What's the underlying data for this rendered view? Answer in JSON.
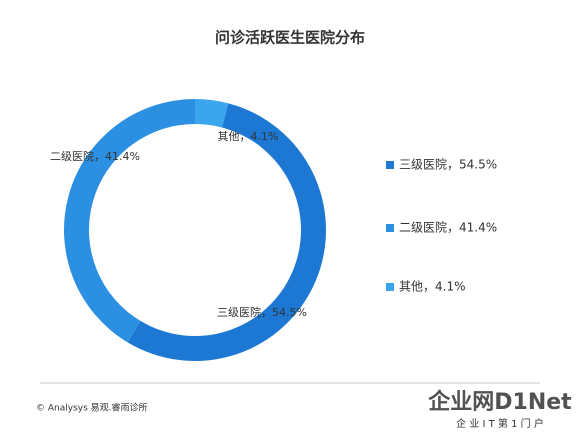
{
  "chart_data": {
    "type": "donut",
    "title": "问诊活跃医生医院分布",
    "categories": [
      "其他",
      "三级医院",
      "二级医院"
    ],
    "values": [
      4.1,
      54.5,
      41.4
    ],
    "value_labels": [
      "其他，4.1%",
      "三级医院，54.5%",
      "二级医院，41.4%"
    ],
    "colors": [
      "#3aa6ee",
      "#1c78d3",
      "#2b90e2"
    ],
    "legend_order": [
      1,
      2,
      0
    ],
    "legend": "right",
    "source": "© Analysys 易观.睿雨诊所",
    "watermark": "企业网D1Net",
    "watermark_sub": "企 业 I T 第 1 门 户"
  }
}
